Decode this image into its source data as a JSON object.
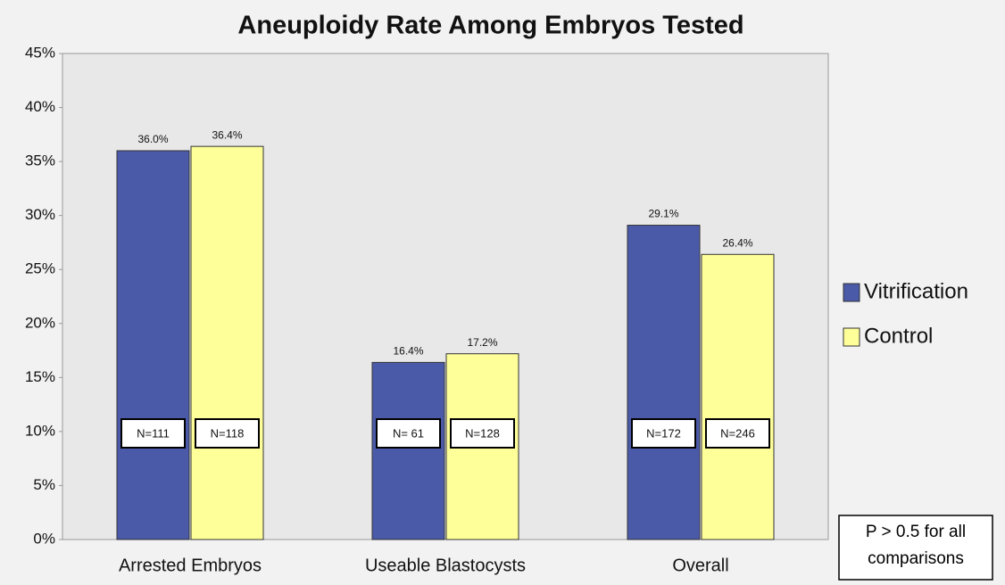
{
  "chart_data": {
    "type": "bar",
    "title": "Aneuploidy Rate Among Embryos Tested",
    "categories": [
      "Arrested Embryos",
      "Useable Blastocysts",
      "Overall"
    ],
    "series": [
      {
        "name": "Vitrification",
        "color": "#4a5aa8",
        "values": [
          36.0,
          16.4,
          29.1
        ],
        "value_labels": [
          "36.0%",
          "16.4%",
          "29.1%"
        ],
        "n_labels": [
          "N=111",
          "N= 61",
          "N=172"
        ]
      },
      {
        "name": "Control",
        "color": "#ffff99",
        "values": [
          36.4,
          17.2,
          26.4
        ],
        "value_labels": [
          "36.4%",
          "17.2%",
          "26.4%"
        ],
        "n_labels": [
          "N=118",
          "N=128",
          "N=246"
        ]
      }
    ],
    "ylim": [
      0,
      45
    ],
    "yticks": [
      {
        "value": 0,
        "label": "0%"
      },
      {
        "value": 5,
        "label": "5%"
      },
      {
        "value": 10,
        "label": "10%"
      },
      {
        "value": 15,
        "label": "15%"
      },
      {
        "value": 20,
        "label": "20%"
      },
      {
        "value": 25,
        "label": "25%"
      },
      {
        "value": 30,
        "label": "30%"
      },
      {
        "value": 35,
        "label": "35%"
      },
      {
        "value": 40,
        "label": "40%"
      },
      {
        "value": 45,
        "label": "45%"
      }
    ],
    "legend": "right",
    "annotation": "P > 0.5 for all comparisons"
  }
}
